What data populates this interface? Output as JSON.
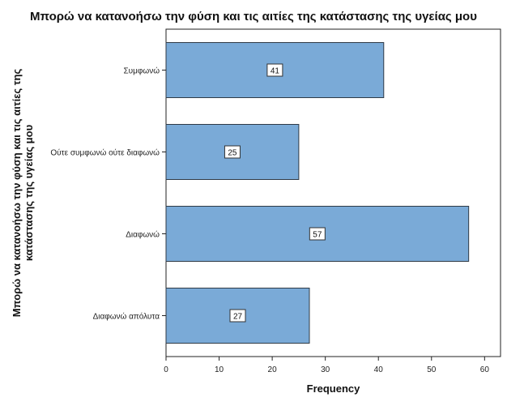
{
  "chart_data": {
    "type": "bar",
    "orientation": "horizontal",
    "title": "Μπορώ να κατανοήσω την φύση και τις αιτίες της κατάστασης της υγείας μου",
    "ylabel": [
      "Μπορώ να κατανοήσω την φύση και τις αιτίες της",
      "κατάστασης της υγείας μου"
    ],
    "xlabel": "Frequency",
    "categories": [
      "Συμφωνώ",
      "Ούτε συμφωνώ ούτε διαφωνώ",
      "Διαφωνώ",
      "Διαφωνώ απόλυτα"
    ],
    "values": [
      41,
      25,
      57,
      27
    ],
    "data_labels": [
      "41",
      "25",
      "57",
      "27"
    ],
    "xlim": [
      0,
      63
    ],
    "xticks": [
      0,
      10,
      20,
      30,
      40,
      50,
      60
    ],
    "grid": false,
    "colors": {
      "bar_fill": "#7aaad7",
      "bar_stroke": "#2f3a46",
      "axis": "#222222"
    }
  }
}
